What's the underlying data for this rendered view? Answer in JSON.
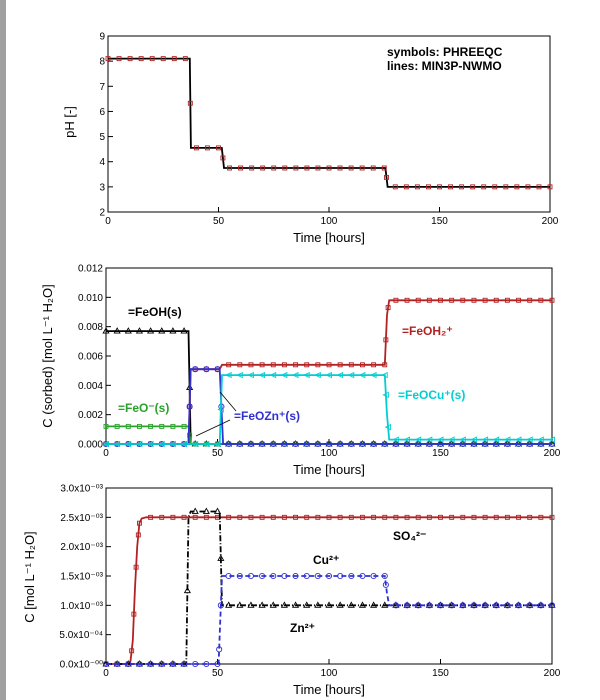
{
  "chart_data": [
    {
      "type": "line",
      "ylabel": "pH [-]",
      "xlabel": "Time [hours]",
      "xlim": [
        0,
        200
      ],
      "ylim": [
        2,
        9
      ],
      "xticks": [
        "0",
        "50",
        "100",
        "150",
        "200"
      ],
      "yticks": [
        "2",
        "3",
        "4",
        "5",
        "6",
        "7",
        "8",
        "9"
      ],
      "legend_note": [
        "symbols: PHREEQC",
        "lines: MIN3P-NWMO"
      ],
      "series": [
        {
          "color": "#000000",
          "marker_color": "#b22222",
          "marker": "square",
          "x": [
            0,
            37,
            37.5,
            51.5,
            52.5,
            125.5,
            126.5,
            200
          ],
          "y": [
            8.1,
            8.1,
            4.55,
            4.55,
            3.75,
            3.75,
            3.0,
            3.0
          ]
        }
      ]
    },
    {
      "type": "line",
      "ylabel": "C (sorbed) [mol L⁻¹ H₂O]",
      "xlabel": "Time [hours]",
      "xlim": [
        0,
        200
      ],
      "ylim": [
        0,
        0.012
      ],
      "xticks": [
        "0",
        "50",
        "100",
        "150",
        "200"
      ],
      "yticks": [
        "0.000",
        "0.002",
        "0.004",
        "0.006",
        "0.008",
        "0.010",
        "0.012"
      ],
      "series": [
        {
          "name": "=FeOH(s)",
          "color": "#000000",
          "marker": "triangle",
          "x": [
            0,
            37,
            38,
            200
          ],
          "y": [
            0.0077,
            0.0077,
            0.0,
            0.0
          ]
        },
        {
          "name": "=FeOH₂⁺",
          "color": "#b22222",
          "marker": "square",
          "x": [
            0,
            37,
            38,
            51,
            52,
            125,
            126,
            127,
            200
          ],
          "y": [
            0.0,
            0.0,
            0.0051,
            0.0051,
            0.0054,
            0.0054,
            0.0088,
            0.0098,
            0.0098
          ]
        },
        {
          "name": "=FeO⁻(s)",
          "color": "#2ca02c",
          "marker": "square",
          "x": [
            0,
            37,
            38,
            200
          ],
          "y": [
            0.0012,
            0.0012,
            0.0,
            0.0
          ]
        },
        {
          "name": "=FeOZn⁺(s)",
          "color": "#3030d0",
          "marker": "circle",
          "x": [
            0,
            37,
            38,
            51,
            52.5,
            200
          ],
          "y": [
            0.0,
            0.0,
            0.0051,
            0.0051,
            0.0,
            0.0
          ]
        },
        {
          "name": "=FeOCu⁺(s)",
          "color": "#00ced1",
          "marker": "triangle-left",
          "x": [
            0,
            51,
            52,
            125,
            126,
            127,
            200
          ],
          "y": [
            0.0,
            0.0,
            0.0047,
            0.0047,
            0.002,
            0.0003,
            0.0003
          ]
        }
      ]
    },
    {
      "type": "line",
      "ylabel": "C [mol L⁻¹ H₂O]",
      "xlabel": "Time [hours]",
      "xlim": [
        0,
        200
      ],
      "ylim": [
        0,
        0.003
      ],
      "xticks": [
        "0",
        "50",
        "100",
        "150",
        "200"
      ],
      "yticks": [
        "0.0x10⁻⁰⁰",
        "5.0x10⁻⁰⁴",
        "1.0x10⁻⁰³",
        "1.5x10⁻⁰³",
        "2.0x10⁻⁰³",
        "2.5x10⁻⁰³",
        "3.0x10⁻⁰³"
      ],
      "series": [
        {
          "name": "SO₄²⁻",
          "color": "#b22222",
          "dash": "",
          "marker": "square",
          "x": [
            0,
            10,
            11,
            12,
            13,
            14,
            15,
            16,
            18,
            200
          ],
          "y": [
            0.0,
            0.0,
            5e-05,
            0.0004,
            0.0013,
            0.002,
            0.0024,
            0.00248,
            0.0025,
            0.0025
          ]
        },
        {
          "name": "Zn²⁺",
          "color": "#000000",
          "dash": "6,2,1,2",
          "marker": "triangle",
          "x": [
            0,
            36,
            37,
            38,
            51,
            52,
            200
          ],
          "y": [
            0.0,
            0.0,
            0.0025,
            0.0026,
            0.0026,
            0.001,
            0.001
          ]
        },
        {
          "name": "Cu²⁺",
          "color": "#3030d0",
          "dash": "5,3",
          "marker": "circle",
          "x": [
            0,
            50.5,
            51,
            52,
            125,
            126,
            127,
            200
          ],
          "y": [
            0.0,
            0.0,
            0.0005,
            0.0015,
            0.0015,
            0.0012,
            0.001,
            0.001
          ]
        }
      ]
    }
  ],
  "labels": {
    "feoh": "=FeOH(s)",
    "feoh2": "=FeOH₂⁺",
    "feo": "=FeO⁻(s)",
    "feozn": "=FeOZn⁺(s)",
    "feocu": "=FeOCu⁺(s)",
    "so4": "SO₄²⁻",
    "cu": "Cu²⁺",
    "zn": "Zn²⁺"
  }
}
